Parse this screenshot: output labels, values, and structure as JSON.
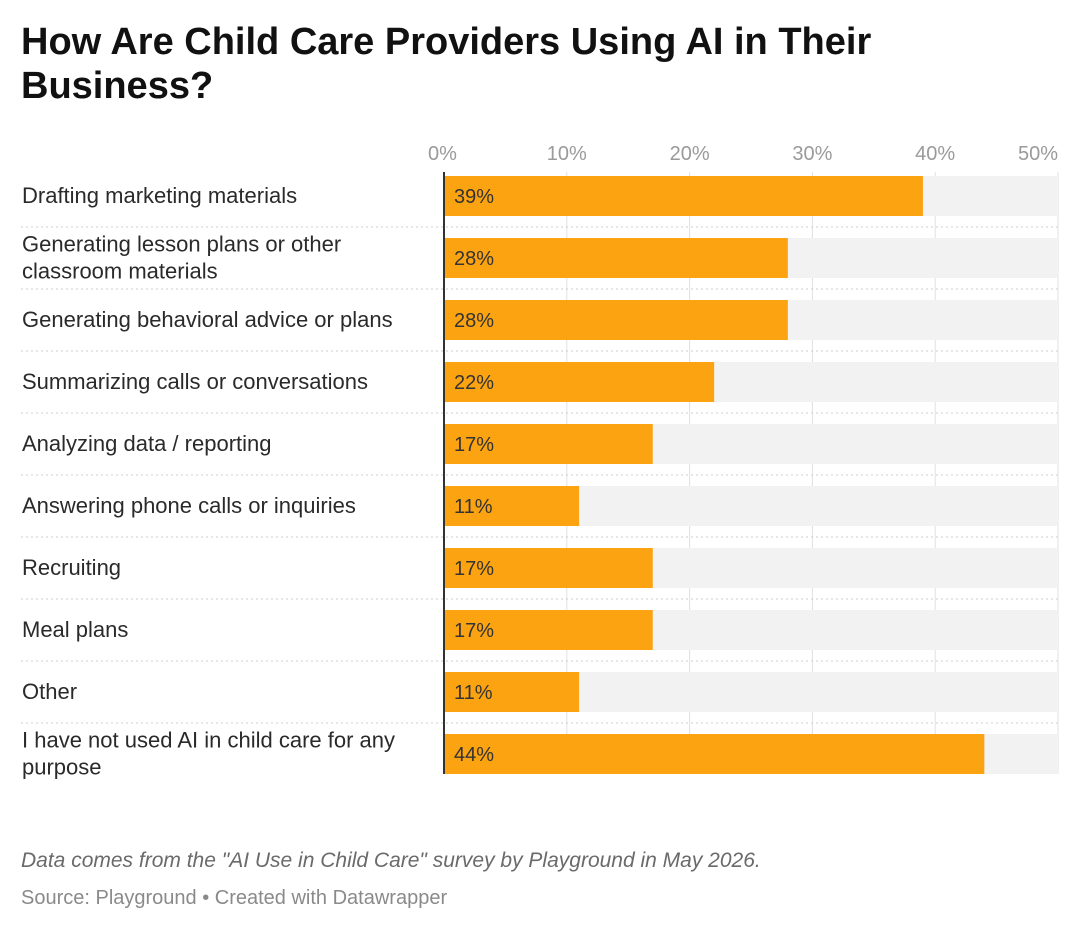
{
  "chart_data": {
    "type": "bar",
    "orientation": "horizontal",
    "title": "How Are Child Care Providers Using AI in Their Business?",
    "categories": [
      "Drafting marketing materials",
      "Generating lesson plans or other classroom materials",
      "Generating behavioral advice or plans",
      "Summarizing calls or conversations",
      "Analyzing data / reporting",
      "Answering phone calls or inquiries",
      "Recruiting",
      "Meal plans",
      "Other",
      "I have not used AI in child care for any purpose"
    ],
    "category_lines": [
      [
        "Drafting marketing materials"
      ],
      [
        "Generating lesson plans or other",
        "classroom materials"
      ],
      [
        "Generating behavioral advice or plans"
      ],
      [
        "Summarizing calls or conversations"
      ],
      [
        "Analyzing data / reporting"
      ],
      [
        "Answering phone calls or inquiries"
      ],
      [
        "Recruiting"
      ],
      [
        "Meal plans"
      ],
      [
        "Other"
      ],
      [
        "I have not used AI in child care for any",
        "purpose"
      ]
    ],
    "values": [
      39,
      28,
      28,
      22,
      17,
      11,
      17,
      17,
      11,
      44
    ],
    "value_labels": [
      "39%",
      "28%",
      "28%",
      "22%",
      "17%",
      "11%",
      "17%",
      "17%",
      "11%",
      "44%"
    ],
    "xlim": [
      0,
      50
    ],
    "x_ticks": [
      0,
      10,
      20,
      30,
      40,
      50
    ],
    "x_tick_labels": [
      "0%",
      "10%",
      "20%",
      "30%",
      "40%",
      "50%"
    ],
    "grid": true,
    "colors": {
      "bar": "#fca311",
      "track": "#f2f2f2",
      "grid": "#e0e0e0",
      "axis": "#333333"
    }
  },
  "notes": "Data comes from the \"AI Use in Child Care\" survey by Playground in May 2026.",
  "source": "Source: Playground • Created with Datawrapper"
}
